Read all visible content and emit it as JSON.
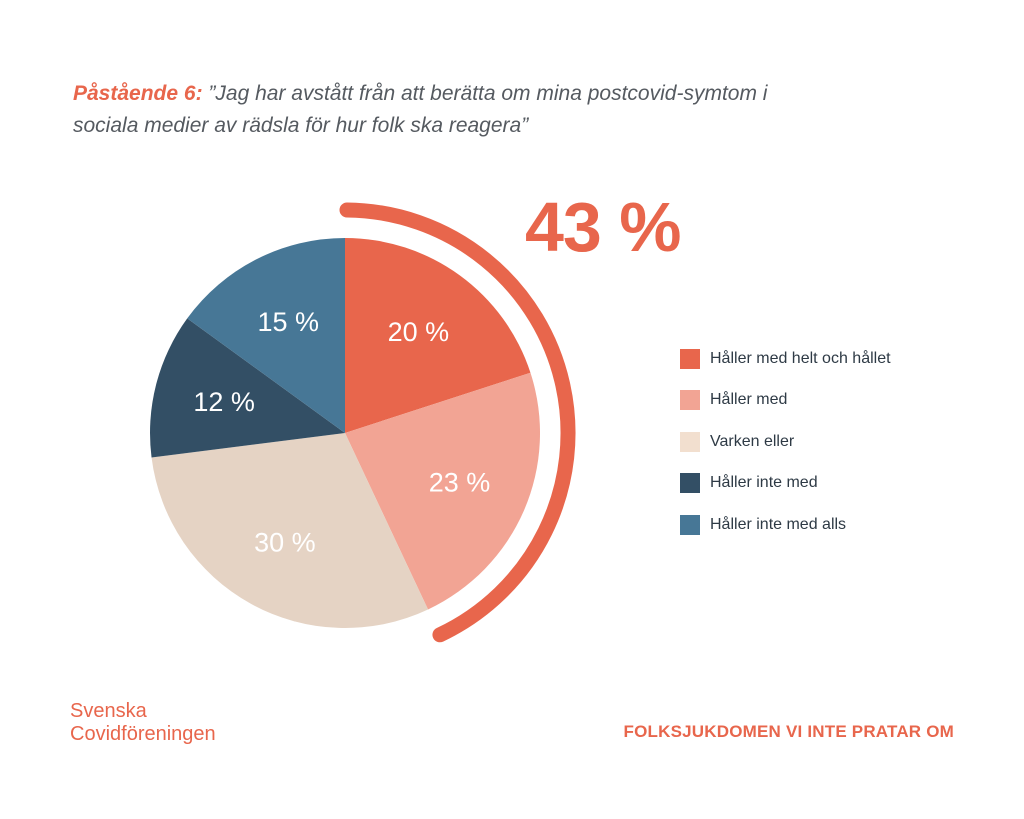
{
  "header": {
    "title_lead": "Påstående 6:",
    "title_rest": " ”Jag har avstått från att berätta om mina postcovid-symtom i sociala medier av rädsla för hur folk ska reagera”"
  },
  "highlight": {
    "value_label": "43 %",
    "value": 43,
    "color": "#e8664c"
  },
  "chart_data": {
    "type": "pie",
    "title": "",
    "start_angle_deg": 0,
    "direction": "clockwise",
    "slices": [
      {
        "name": "Håller med helt och hållet",
        "value": 20,
        "label": "20 %",
        "color": "#e8664c"
      },
      {
        "name": "Håller med",
        "value": 23,
        "label": "23 %",
        "color": "#f2a494"
      },
      {
        "name": "Varken eller",
        "value": 30,
        "label": "30 %",
        "color": "#e5d3c4"
      },
      {
        "name": "Håller inte med",
        "value": 12,
        "label": "12 %",
        "color": "#334f65"
      },
      {
        "name": "Håller inte med alls",
        "value": 15,
        "label": "15 %",
        "color": "#477796"
      }
    ],
    "legend_position": "right"
  },
  "legend": {
    "items": [
      {
        "label": "Håller med helt och hållet",
        "color": "#e8664c"
      },
      {
        "label": "Håller med",
        "color": "#f2a494"
      },
      {
        "label": "Varken eller",
        "color": "#f2dfcf"
      },
      {
        "label": "Håller inte med",
        "color": "#334f65"
      },
      {
        "label": "Håller inte med alls",
        "color": "#477796"
      }
    ]
  },
  "footer": {
    "org_line1": "Svenska",
    "org_line2": "Covidföreningen",
    "tagline": "FOLKSJUKDOMEN VI INTE PRATAR OM"
  }
}
